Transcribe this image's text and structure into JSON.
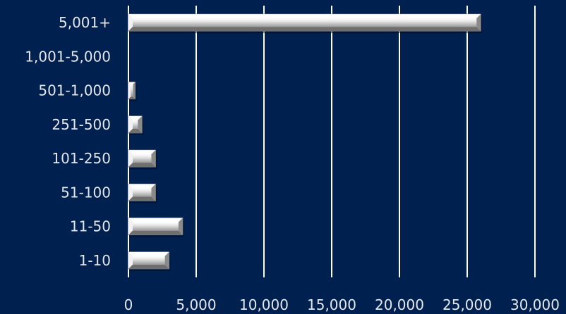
{
  "chart_data": {
    "type": "bar",
    "orientation": "horizontal",
    "categories": [
      "1-10",
      "11-50",
      "51-100",
      "101-250",
      "251-500",
      "501-1,000",
      "1,001-5,000",
      "5,001+"
    ],
    "values": [
      3000,
      4000,
      2000,
      2000,
      1000,
      500,
      0,
      26000
    ],
    "xlim": [
      0,
      30000
    ],
    "x_ticks": [
      0,
      5000,
      10000,
      15000,
      20000,
      25000,
      30000
    ],
    "x_tick_labels": [
      "0",
      "5,000",
      "10,000",
      "15,000",
      "20,000",
      "25,000",
      "30,000"
    ],
    "title": "",
    "xlabel": "",
    "ylabel": "",
    "grid": "vertical",
    "legend": "none",
    "colors": {
      "background": "#00204f",
      "bar_light": "#ffffff",
      "bar_mid": "#c9c9c9",
      "bar_dark": "#6f6f6f",
      "gridline": "#ffffff",
      "text": "#e4e7ee"
    }
  }
}
